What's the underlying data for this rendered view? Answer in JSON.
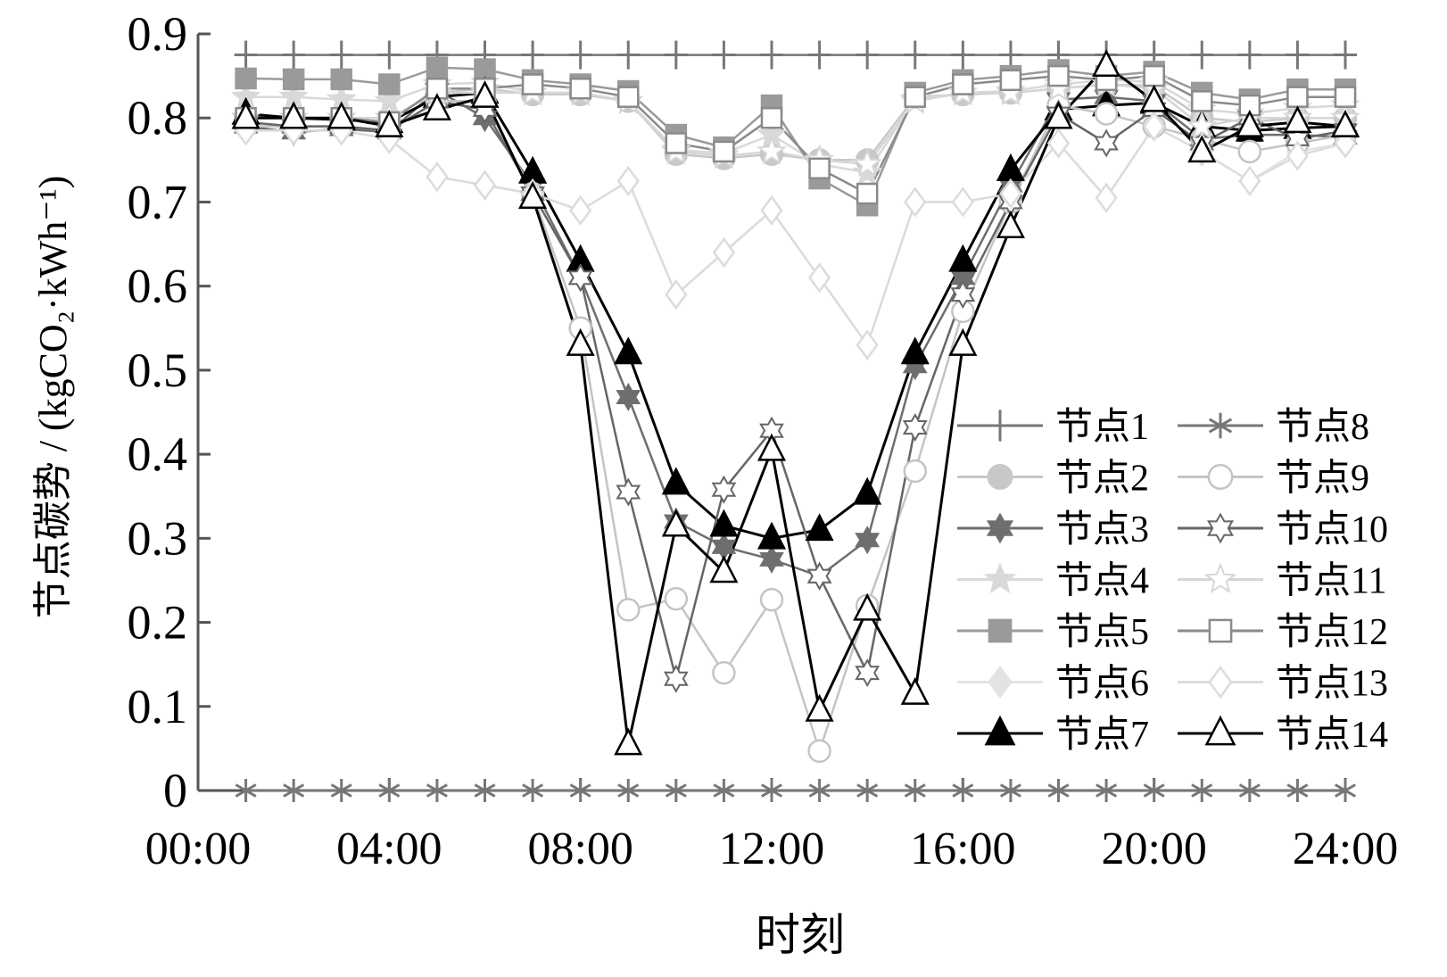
{
  "chart_data": {
    "type": "line",
    "xlabel": "时刻",
    "ylabel": "节点碳势 / (kgCO₂·kWh⁻¹)",
    "ylim": [
      0,
      0.9
    ],
    "yticks": [
      "0",
      "0.1",
      "0.2",
      "0.3",
      "0.4",
      "0.5",
      "0.6",
      "0.7",
      "0.8",
      "0.9"
    ],
    "xlim": [
      0,
      24
    ],
    "xticks": [
      "00:00",
      "04:00",
      "08:00",
      "12:00",
      "16:00",
      "20:00",
      "24:00"
    ],
    "x": [
      1,
      2,
      3,
      4,
      5,
      6,
      7,
      8,
      9,
      10,
      11,
      12,
      13,
      14,
      15,
      16,
      17,
      18,
      19,
      20,
      21,
      22,
      23,
      24
    ],
    "legend_position": "bottom-right",
    "series": [
      {
        "name": "节点1",
        "color": "#777777",
        "marker": "plus",
        "values": [
          0.875,
          0.875,
          0.875,
          0.875,
          0.875,
          0.875,
          0.875,
          0.875,
          0.875,
          0.875,
          0.875,
          0.875,
          0.875,
          0.875,
          0.875,
          0.875,
          0.875,
          0.875,
          0.875,
          0.875,
          0.875,
          0.875,
          0.875,
          0.875
        ]
      },
      {
        "name": "节点2",
        "color": "#c8c8c8",
        "marker": "circle-filled",
        "values": [
          0.8,
          0.8,
          0.8,
          0.8,
          0.83,
          0.835,
          0.828,
          0.828,
          0.82,
          0.757,
          0.752,
          0.757,
          0.75,
          0.75,
          0.825,
          0.828,
          0.83,
          0.835,
          0.84,
          0.838,
          0.8,
          0.795,
          0.8,
          0.8
        ]
      },
      {
        "name": "节点3",
        "color": "#6e6e6e",
        "marker": "star6-filled",
        "values": [
          0.79,
          0.783,
          0.787,
          0.783,
          0.833,
          0.8,
          0.72,
          0.61,
          0.468,
          0.32,
          0.29,
          0.275,
          0.255,
          0.298,
          0.505,
          0.61,
          0.72,
          0.822,
          0.825,
          0.82,
          0.775,
          0.78,
          0.78,
          0.777
        ]
      },
      {
        "name": "节点4",
        "color": "#d9d9d9",
        "marker": "star5-filled",
        "values": [
          0.825,
          0.825,
          0.822,
          0.82,
          0.84,
          0.842,
          0.83,
          0.83,
          0.82,
          0.762,
          0.758,
          0.78,
          0.745,
          0.735,
          0.822,
          0.83,
          0.832,
          0.84,
          0.845,
          0.843,
          0.81,
          0.805,
          0.812,
          0.815
        ]
      },
      {
        "name": "节点5",
        "color": "#9a9a9a",
        "marker": "square-filled",
        "values": [
          0.847,
          0.846,
          0.846,
          0.84,
          0.86,
          0.858,
          0.845,
          0.84,
          0.832,
          0.78,
          0.765,
          0.815,
          0.728,
          0.696,
          0.83,
          0.845,
          0.85,
          0.857,
          0.85,
          0.855,
          0.83,
          0.822,
          0.834,
          0.834
        ]
      },
      {
        "name": "节点6",
        "color": "#e3e3e3",
        "marker": "diamond-filled",
        "values": [
          0.785,
          0.785,
          0.785,
          0.775,
          0.73,
          0.72,
          0.71,
          0.69,
          0.725,
          0.59,
          0.64,
          0.69,
          0.61,
          0.53,
          0.7,
          0.7,
          0.71,
          0.77,
          0.705,
          0.79,
          0.76,
          0.725,
          0.76,
          0.77
        ]
      },
      {
        "name": "节点7",
        "color": "#000000",
        "marker": "triangle-filled",
        "values": [
          0.805,
          0.8,
          0.798,
          0.795,
          0.825,
          0.83,
          0.735,
          0.63,
          0.52,
          0.365,
          0.315,
          0.3,
          0.31,
          0.353,
          0.52,
          0.63,
          0.738,
          0.81,
          0.815,
          0.818,
          0.79,
          0.785,
          0.788,
          0.79
        ]
      },
      {
        "name": "节点8",
        "color": "#777777",
        "marker": "asterisk",
        "values": [
          0,
          0,
          0,
          0,
          0,
          0,
          0,
          0,
          0,
          0,
          0,
          0,
          0,
          0,
          0,
          0,
          0,
          0,
          0,
          0,
          0,
          0,
          0,
          0
        ]
      },
      {
        "name": "节点9",
        "color": "#c4c4c4",
        "marker": "circle-open",
        "values": [
          0.79,
          0.79,
          0.79,
          0.785,
          0.82,
          0.82,
          0.71,
          0.55,
          0.215,
          0.228,
          0.14,
          0.227,
          0.047,
          0.22,
          0.38,
          0.57,
          0.7,
          0.815,
          0.805,
          0.79,
          0.775,
          0.76,
          0.77,
          0.78
        ]
      },
      {
        "name": "节点10",
        "color": "#666666",
        "marker": "star6-open",
        "values": [
          0.795,
          0.79,
          0.79,
          0.785,
          0.82,
          0.81,
          0.71,
          0.61,
          0.355,
          0.133,
          0.358,
          0.428,
          0.255,
          0.14,
          0.432,
          0.59,
          0.7,
          0.805,
          0.77,
          0.81,
          0.77,
          0.8,
          0.775,
          0.785
        ]
      },
      {
        "name": "节点11",
        "color": "#d6d6d6",
        "marker": "star5-open",
        "values": [
          0.8,
          0.8,
          0.8,
          0.8,
          0.83,
          0.83,
          0.83,
          0.83,
          0.82,
          0.76,
          0.755,
          0.76,
          0.75,
          0.745,
          0.82,
          0.83,
          0.83,
          0.835,
          0.84,
          0.835,
          0.79,
          0.8,
          0.8,
          0.8
        ]
      },
      {
        "name": "节点12",
        "color": "#8a8a8a",
        "marker": "square-open",
        "values": [
          0.8,
          0.8,
          0.8,
          0.795,
          0.835,
          0.835,
          0.84,
          0.835,
          0.825,
          0.77,
          0.76,
          0.8,
          0.74,
          0.71,
          0.825,
          0.84,
          0.845,
          0.85,
          0.845,
          0.85,
          0.82,
          0.815,
          0.825,
          0.825
        ]
      },
      {
        "name": "节点13",
        "color": "#dcdcdc",
        "marker": "diamond-open",
        "values": [
          0.785,
          0.785,
          0.785,
          0.775,
          0.73,
          0.72,
          0.71,
          0.69,
          0.725,
          0.59,
          0.64,
          0.69,
          0.61,
          0.53,
          0.7,
          0.7,
          0.71,
          0.77,
          0.705,
          0.79,
          0.76,
          0.725,
          0.755,
          0.77
        ]
      },
      {
        "name": "节点14",
        "color": "#000000",
        "marker": "triangle-open",
        "values": [
          0.8,
          0.8,
          0.8,
          0.79,
          0.81,
          0.825,
          0.705,
          0.53,
          0.055,
          0.315,
          0.26,
          0.405,
          0.095,
          0.215,
          0.115,
          0.53,
          0.67,
          0.8,
          0.862,
          0.82,
          0.76,
          0.79,
          0.795,
          0.79
        ]
      }
    ]
  }
}
